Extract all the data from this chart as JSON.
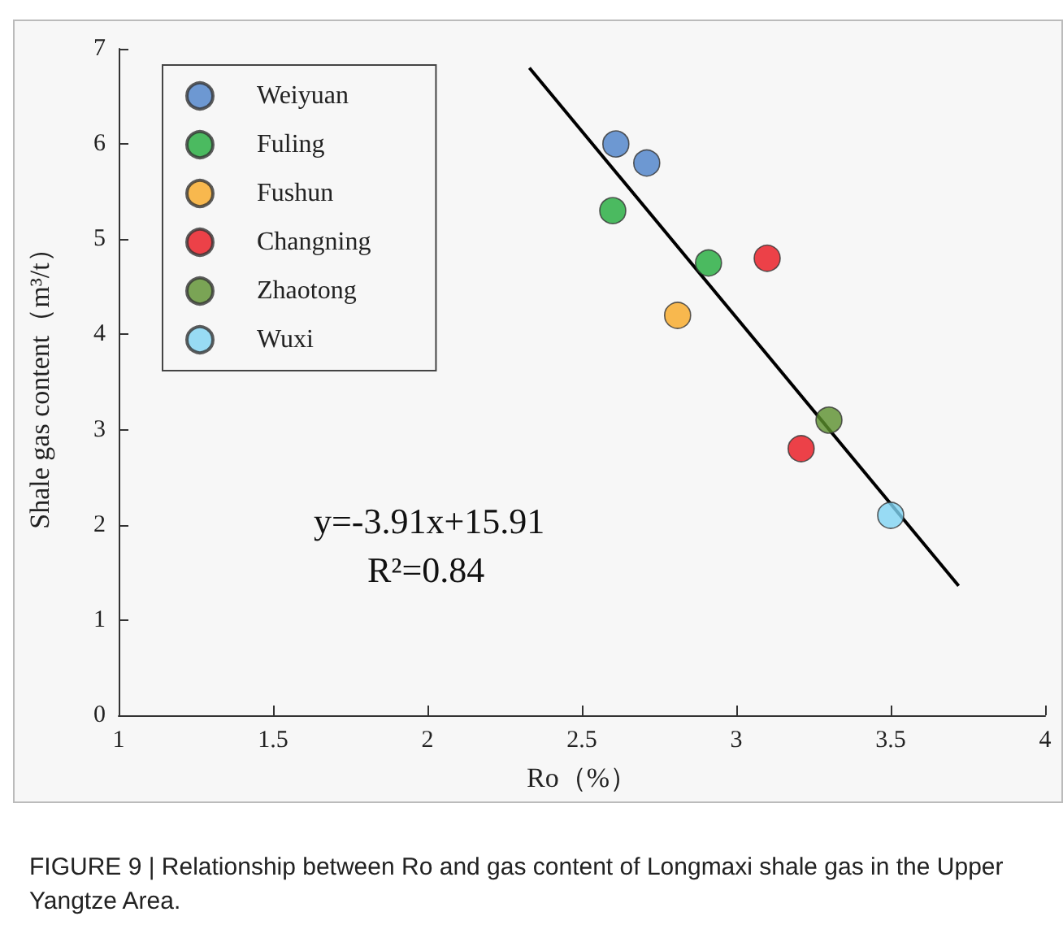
{
  "chart_data": {
    "type": "scatter",
    "xlabel": "Ro（%）",
    "ylabel": "Shale gas content（m³/t）",
    "xlim": [
      1,
      4
    ],
    "xticks": [
      1,
      1.5,
      2,
      2.5,
      3,
      3.5,
      4
    ],
    "ylim": [
      0,
      7
    ],
    "yticks": [
      0,
      1,
      2,
      3,
      4,
      5,
      6,
      7
    ],
    "grid": false,
    "legend": "top left",
    "marker": "circle",
    "series": [
      {
        "name": "Weiyuan",
        "color": "#4a7fc8",
        "x": [
          2.61,
          2.71
        ],
        "values": [
          6.0,
          5.8
        ]
      },
      {
        "name": "Fuling",
        "color": "#1faa3a",
        "x": [
          2.6,
          2.91
        ],
        "values": [
          5.3,
          4.75
        ]
      },
      {
        "name": "Fushun",
        "color": "#f7a823",
        "x": [
          2.81
        ],
        "values": [
          4.2
        ]
      },
      {
        "name": "Changning",
        "color": "#e8131b",
        "x": [
          3.1,
          3.21
        ],
        "values": [
          4.8,
          2.8
        ]
      },
      {
        "name": "Zhaotong",
        "color": "#5a8e2c",
        "x": [
          3.3
        ],
        "values": [
          3.1
        ]
      },
      {
        "name": "Wuxi",
        "color": "#7fd3f2",
        "x": [
          3.5
        ],
        "values": [
          2.1
        ]
      },
      {
        "type": "line",
        "color": "#000000",
        "x": [
          2.33,
          3.72
        ],
        "values": [
          6.8,
          1.36
        ],
        "marker": "none"
      }
    ],
    "annotations": [
      "y=-3.91x+15.91",
      "R²=0.84",
      "FIGURE 9 | Relationship between Ro and gas content of Longmaxi shale gas in the Upper Yangtze Area."
    ]
  }
}
